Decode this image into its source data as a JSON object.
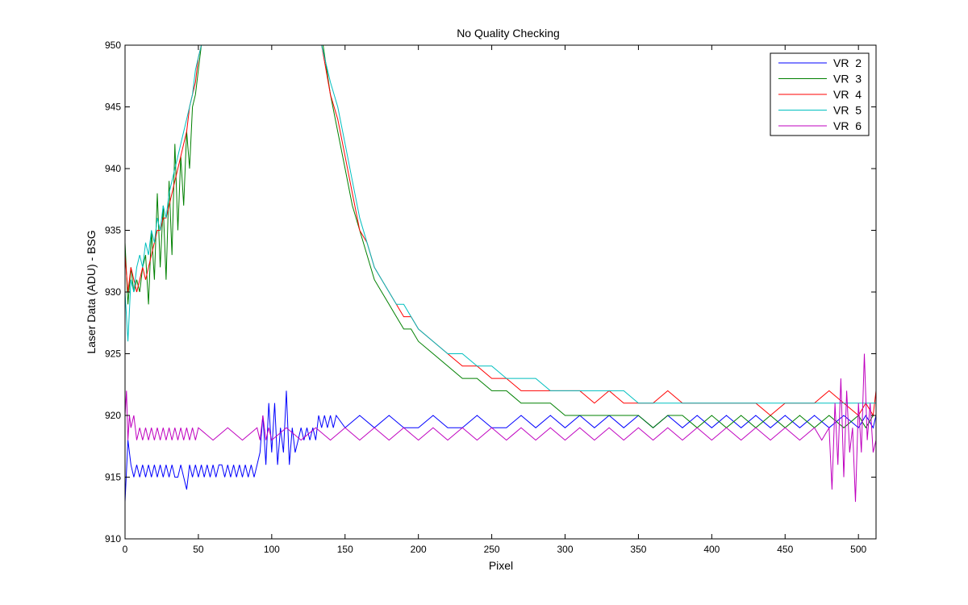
{
  "chart_data": {
    "type": "line",
    "title": "No Quality Checking",
    "xlabel": "Pixel",
    "ylabel": "Laser Data (ADU) - BSG",
    "xlim": [
      0,
      512
    ],
    "ylim": [
      910,
      950
    ],
    "xticks": [
      0,
      50,
      100,
      150,
      200,
      250,
      300,
      350,
      400,
      450,
      500
    ],
    "yticks": [
      910,
      915,
      920,
      925,
      930,
      935,
      940,
      945,
      950
    ],
    "grid": false,
    "legend_position": "top-right",
    "series": [
      {
        "name": "VR  2",
        "color": "#0000ff",
        "x": [
          0,
          2,
          4,
          6,
          8,
          10,
          12,
          14,
          16,
          18,
          20,
          22,
          24,
          26,
          28,
          30,
          32,
          34,
          36,
          38,
          40,
          42,
          44,
          46,
          48,
          50,
          52,
          54,
          56,
          58,
          60,
          62,
          64,
          66,
          68,
          70,
          72,
          74,
          76,
          78,
          80,
          82,
          84,
          86,
          88,
          90,
          92,
          94,
          96,
          98,
          100,
          102,
          104,
          106,
          108,
          110,
          112,
          114,
          116,
          118,
          120,
          122,
          124,
          126,
          128,
          130,
          132,
          134,
          136,
          138,
          140,
          142,
          144,
          150,
          160,
          170,
          180,
          190,
          200,
          210,
          220,
          230,
          240,
          250,
          260,
          270,
          280,
          290,
          300,
          310,
          320,
          330,
          340,
          350,
          360,
          370,
          380,
          390,
          400,
          410,
          420,
          430,
          440,
          450,
          460,
          470,
          480,
          490,
          500,
          505,
          510,
          512
        ],
        "y": [
          913,
          918,
          916,
          915,
          916,
          915,
          916,
          915,
          916,
          915,
          916,
          915,
          916,
          915,
          916,
          915,
          916,
          915,
          915,
          916,
          915,
          914,
          916,
          915,
          916,
          915,
          916,
          915,
          916,
          915,
          916,
          915,
          916,
          916,
          915,
          916,
          915,
          916,
          915,
          916,
          915,
          916,
          915,
          916,
          915,
          916,
          917,
          920,
          916,
          921,
          917,
          921,
          916,
          919,
          917,
          922,
          916,
          919,
          917,
          918,
          919,
          918,
          919,
          918,
          919,
          918,
          920,
          919,
          920,
          919,
          920,
          919,
          920,
          919,
          920,
          919,
          920,
          919,
          919,
          920,
          919,
          919,
          920,
          919,
          919,
          920,
          919,
          920,
          919,
          920,
          919,
          920,
          919,
          920,
          919,
          920,
          919,
          920,
          919,
          920,
          919,
          920,
          919,
          920,
          919,
          920,
          919,
          920,
          919,
          920,
          919,
          920
        ]
      },
      {
        "name": "VR  3",
        "color": "#008000",
        "x": [
          0,
          2,
          4,
          6,
          8,
          10,
          12,
          14,
          16,
          18,
          20,
          22,
          24,
          26,
          28,
          30,
          32,
          34,
          36,
          38,
          40,
          42,
          44,
          46,
          48,
          50,
          52,
          135,
          140,
          145,
          150,
          155,
          160,
          165,
          170,
          175,
          180,
          185,
          190,
          195,
          200,
          210,
          220,
          230,
          240,
          250,
          260,
          270,
          280,
          290,
          300,
          310,
          320,
          330,
          340,
          350,
          360,
          370,
          380,
          390,
          400,
          410,
          420,
          430,
          440,
          450,
          460,
          470,
          480,
          490,
          500,
          505,
          510,
          512
        ],
        "y": [
          934,
          929,
          932,
          930,
          931,
          930,
          932,
          933,
          929,
          935,
          931,
          938,
          932,
          937,
          931,
          939,
          933,
          942,
          935,
          941,
          937,
          943,
          940,
          945,
          946,
          948,
          950,
          950,
          946,
          943,
          940,
          937,
          935,
          933,
          931,
          930,
          929,
          928,
          927,
          927,
          926,
          925,
          924,
          923,
          923,
          922,
          922,
          921,
          921,
          921,
          920,
          920,
          920,
          920,
          920,
          920,
          919,
          920,
          920,
          919,
          920,
          919,
          920,
          919,
          920,
          919,
          920,
          919,
          920,
          919,
          920,
          919,
          920,
          920
        ]
      },
      {
        "name": "VR  4",
        "color": "#ff0000",
        "x": [
          0,
          2,
          4,
          6,
          8,
          10,
          12,
          14,
          16,
          18,
          20,
          22,
          24,
          26,
          28,
          30,
          32,
          34,
          36,
          38,
          40,
          42,
          44,
          46,
          48,
          50,
          52,
          134,
          140,
          145,
          150,
          155,
          160,
          165,
          170,
          175,
          180,
          185,
          190,
          195,
          200,
          210,
          220,
          230,
          240,
          250,
          260,
          270,
          280,
          290,
          300,
          310,
          320,
          330,
          340,
          350,
          360,
          370,
          380,
          390,
          400,
          410,
          420,
          430,
          440,
          450,
          460,
          470,
          480,
          490,
          500,
          505,
          510,
          512
        ],
        "y": [
          933,
          930,
          932,
          931,
          930,
          931,
          932,
          931,
          932,
          933,
          934,
          935,
          935,
          936,
          936,
          937,
          938,
          939,
          940,
          941,
          942,
          943,
          945,
          946,
          947,
          949,
          950,
          950,
          946,
          944,
          941,
          938,
          935,
          934,
          932,
          931,
          930,
          929,
          928,
          928,
          927,
          926,
          925,
          924,
          924,
          923,
          923,
          922,
          922,
          922,
          922,
          922,
          921,
          922,
          921,
          921,
          921,
          922,
          921,
          921,
          921,
          921,
          921,
          921,
          920,
          921,
          921,
          921,
          922,
          921,
          920,
          921,
          920,
          922
        ]
      },
      {
        "name": "VR  5",
        "color": "#00bfbf",
        "x": [
          0,
          2,
          4,
          6,
          8,
          10,
          12,
          14,
          16,
          18,
          20,
          22,
          24,
          26,
          28,
          30,
          32,
          34,
          36,
          38,
          40,
          42,
          44,
          46,
          48,
          50,
          52,
          134,
          140,
          145,
          150,
          155,
          160,
          165,
          170,
          175,
          180,
          185,
          190,
          195,
          200,
          210,
          220,
          230,
          240,
          250,
          260,
          270,
          280,
          290,
          300,
          310,
          320,
          330,
          340,
          350,
          360,
          370,
          380,
          390,
          400,
          410,
          420,
          430,
          440,
          450,
          460,
          470,
          480,
          490,
          500,
          505,
          510,
          512
        ],
        "y": [
          930,
          926,
          931,
          930,
          932,
          933,
          932,
          934,
          933,
          935,
          934,
          936,
          935,
          937,
          936,
          938,
          939,
          940,
          941,
          942,
          943,
          944,
          945,
          946,
          948,
          949,
          950,
          950,
          947,
          945,
          942,
          939,
          936,
          934,
          932,
          931,
          930,
          929,
          929,
          928,
          927,
          926,
          925,
          925,
          924,
          924,
          923,
          923,
          923,
          922,
          922,
          922,
          922,
          922,
          922,
          921,
          921,
          921,
          921,
          921,
          921,
          921,
          921,
          921,
          921,
          921,
          921,
          921,
          921,
          921,
          921,
          921,
          921,
          921
        ]
      },
      {
        "name": "VR  6",
        "color": "#bf00bf",
        "x": [
          0,
          1,
          2,
          3,
          4,
          6,
          8,
          10,
          12,
          14,
          16,
          18,
          20,
          22,
          24,
          26,
          28,
          30,
          32,
          34,
          36,
          38,
          40,
          42,
          44,
          46,
          48,
          50,
          60,
          70,
          80,
          90,
          92,
          94,
          96,
          98,
          100,
          110,
          120,
          130,
          140,
          150,
          160,
          170,
          180,
          190,
          200,
          210,
          220,
          230,
          240,
          250,
          260,
          270,
          280,
          290,
          300,
          310,
          320,
          330,
          340,
          350,
          360,
          370,
          380,
          390,
          400,
          410,
          420,
          430,
          440,
          450,
          460,
          470,
          475,
          480,
          482,
          484,
          486,
          488,
          490,
          492,
          494,
          496,
          498,
          500,
          502,
          504,
          506,
          508,
          510,
          512
        ],
        "y": [
          920,
          922,
          918,
          920,
          919,
          920,
          918,
          919,
          918,
          919,
          918,
          919,
          918,
          919,
          918,
          919,
          918,
          919,
          918,
          919,
          918,
          919,
          918,
          919,
          918,
          919,
          918,
          919,
          918,
          919,
          918,
          919,
          918,
          920,
          918,
          919,
          918,
          919,
          918,
          919,
          918,
          919,
          918,
          919,
          918,
          919,
          918,
          919,
          918,
          919,
          918,
          919,
          918,
          919,
          918,
          919,
          918,
          919,
          918,
          919,
          918,
          919,
          918,
          919,
          918,
          919,
          918,
          919,
          918,
          919,
          918,
          919,
          918,
          919,
          918,
          919,
          914,
          921,
          916,
          923,
          915,
          922,
          917,
          919,
          913,
          921,
          917,
          925,
          918,
          921,
          917,
          918
        ]
      }
    ]
  }
}
